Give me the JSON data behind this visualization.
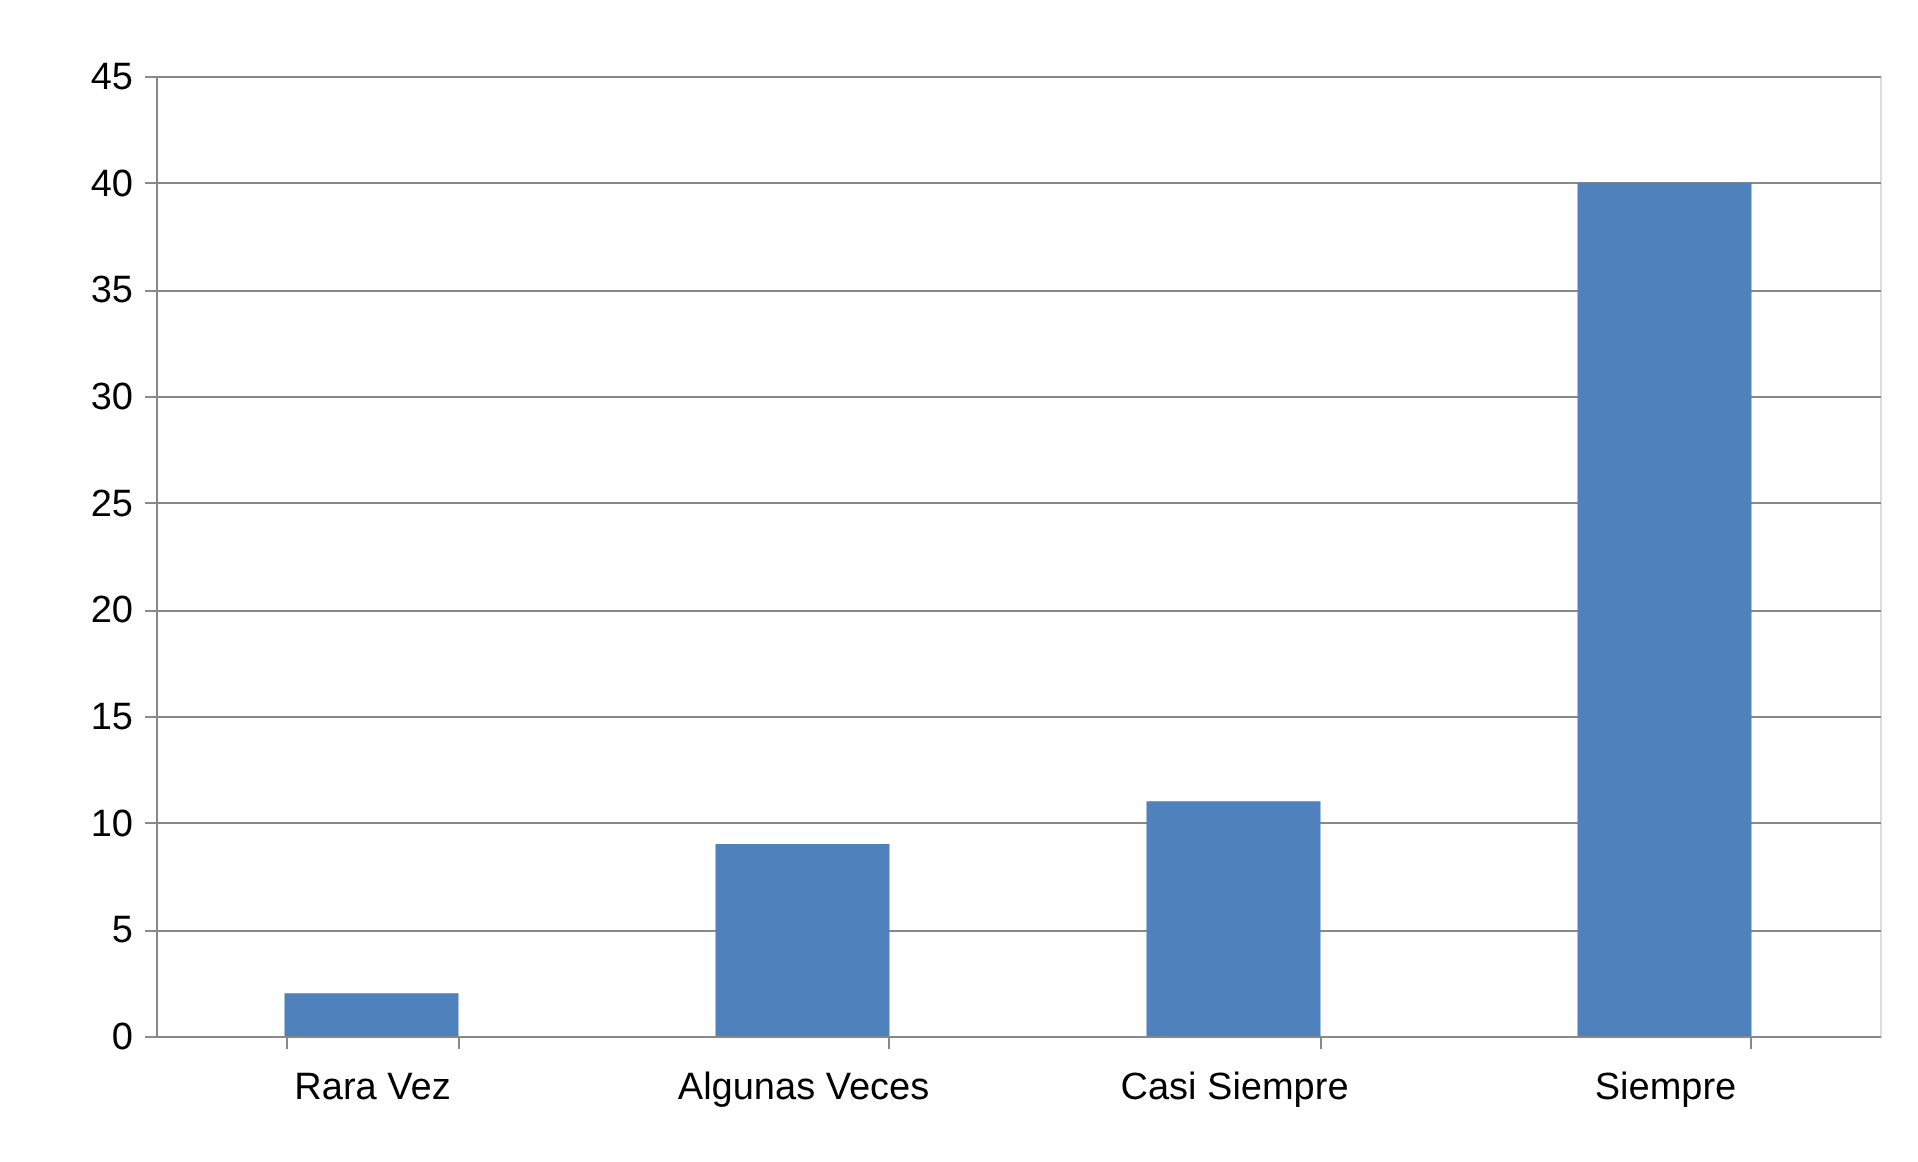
{
  "chart_data": {
    "type": "bar",
    "categories": [
      "Rara Vez",
      "Algunas Veces",
      "Casi Siempre",
      "Siempre"
    ],
    "values": [
      2,
      9,
      11,
      40
    ],
    "color": "#4f81bd",
    "ylim": [
      0,
      45
    ],
    "yticks": [
      0,
      5,
      10,
      15,
      20,
      25,
      30,
      35,
      40,
      45
    ],
    "grid": "y"
  }
}
